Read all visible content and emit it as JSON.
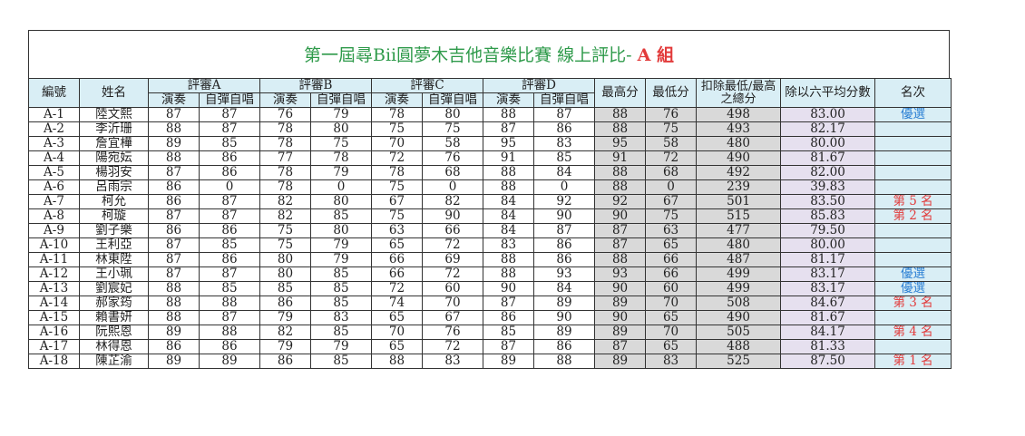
{
  "title": {
    "main": "第一屆尋Bii圓夢木吉他音樂比賽 線上評比-",
    "group": "A 組"
  },
  "headers": {
    "id": "編號",
    "name": "姓名",
    "judges": [
      "評審A",
      "評審B",
      "評審C",
      "評審D"
    ],
    "perform": "演奏",
    "sing": "自彈自唱",
    "max": "最高分",
    "min": "最低分",
    "total": "扣除最低/最高之總分",
    "average": "除以六平均分數",
    "rank": "名次"
  },
  "colors": {
    "title": "#2e9a4a",
    "group": "#e23b3b",
    "rank_selected": "#2a7fd4",
    "rank_place": "#e23b3b"
  },
  "rows": [
    {
      "id": "A-1",
      "name": "陸文熙",
      "s": [
        "87",
        "87",
        "76",
        "79",
        "78",
        "80",
        "88",
        "87"
      ],
      "max": "88",
      "min": "76",
      "total": "498",
      "avg": "83.00",
      "rank": "優選",
      "rank_type": "blue"
    },
    {
      "id": "A-2",
      "name": "李沂珊",
      "s": [
        "88",
        "87",
        "78",
        "80",
        "75",
        "75",
        "87",
        "86"
      ],
      "max": "88",
      "min": "75",
      "total": "493",
      "avg": "82.17",
      "rank": "",
      "rank_type": ""
    },
    {
      "id": "A-3",
      "name": "詹宜樺",
      "s": [
        "89",
        "85",
        "78",
        "75",
        "70",
        "58",
        "95",
        "83"
      ],
      "max": "95",
      "min": "58",
      "total": "480",
      "avg": "80.00",
      "rank": "",
      "rank_type": ""
    },
    {
      "id": "A-4",
      "name": "陽宛妘",
      "s": [
        "88",
        "86",
        "77",
        "78",
        "72",
        "76",
        "91",
        "85"
      ],
      "max": "91",
      "min": "72",
      "total": "490",
      "avg": "81.67",
      "rank": "",
      "rank_type": ""
    },
    {
      "id": "A-5",
      "name": "楊羽安",
      "s": [
        "87",
        "86",
        "78",
        "79",
        "78",
        "68",
        "88",
        "84"
      ],
      "max": "88",
      "min": "68",
      "total": "492",
      "avg": "82.00",
      "rank": "",
      "rank_type": ""
    },
    {
      "id": "A-6",
      "name": "呂雨宗",
      "s": [
        "86",
        "0",
        "78",
        "0",
        "75",
        "0",
        "88",
        "0"
      ],
      "max": "88",
      "min": "0",
      "total": "239",
      "avg": "39.83",
      "rank": "",
      "rank_type": ""
    },
    {
      "id": "A-7",
      "name": "柯允",
      "s": [
        "86",
        "87",
        "82",
        "80",
        "67",
        "82",
        "84",
        "92"
      ],
      "max": "92",
      "min": "67",
      "total": "501",
      "avg": "83.50",
      "rank": "第 5 名",
      "rank_type": "red"
    },
    {
      "id": "A-8",
      "name": "柯璇",
      "s": [
        "87",
        "87",
        "82",
        "85",
        "75",
        "90",
        "84",
        "90"
      ],
      "max": "90",
      "min": "75",
      "total": "515",
      "avg": "85.83",
      "rank": "第 2 名",
      "rank_type": "red"
    },
    {
      "id": "A-9",
      "name": "劉子樂",
      "s": [
        "86",
        "86",
        "75",
        "80",
        "63",
        "66",
        "84",
        "87"
      ],
      "max": "87",
      "min": "63",
      "total": "477",
      "avg": "79.50",
      "rank": "",
      "rank_type": ""
    },
    {
      "id": "A-10",
      "name": "王利亞",
      "s": [
        "87",
        "85",
        "75",
        "79",
        "65",
        "72",
        "83",
        "86"
      ],
      "max": "87",
      "min": "65",
      "total": "480",
      "avg": "80.00",
      "rank": "",
      "rank_type": ""
    },
    {
      "id": "A-11",
      "name": "林東陞",
      "s": [
        "87",
        "86",
        "80",
        "79",
        "66",
        "69",
        "88",
        "86"
      ],
      "max": "88",
      "min": "66",
      "total": "487",
      "avg": "81.17",
      "rank": "",
      "rank_type": ""
    },
    {
      "id": "A-12",
      "name": "王小珮",
      "s": [
        "87",
        "87",
        "80",
        "85",
        "66",
        "72",
        "88",
        "93"
      ],
      "max": "93",
      "min": "66",
      "total": "499",
      "avg": "83.17",
      "rank": "優選",
      "rank_type": "blue"
    },
    {
      "id": "A-13",
      "name": "劉宸妃",
      "s": [
        "88",
        "85",
        "85",
        "85",
        "72",
        "60",
        "90",
        "84"
      ],
      "max": "90",
      "min": "60",
      "total": "499",
      "avg": "83.17",
      "rank": "優選",
      "rank_type": "blue"
    },
    {
      "id": "A-14",
      "name": "郝家筠",
      "s": [
        "88",
        "88",
        "86",
        "85",
        "74",
        "70",
        "87",
        "89"
      ],
      "max": "89",
      "min": "70",
      "total": "508",
      "avg": "84.67",
      "rank": "第 3 名",
      "rank_type": "red"
    },
    {
      "id": "A-15",
      "name": "賴書妍",
      "s": [
        "88",
        "87",
        "79",
        "83",
        "65",
        "67",
        "86",
        "90"
      ],
      "max": "90",
      "min": "65",
      "total": "490",
      "avg": "81.67",
      "rank": "",
      "rank_type": ""
    },
    {
      "id": "A-16",
      "name": "阮熙恩",
      "s": [
        "89",
        "88",
        "82",
        "85",
        "70",
        "76",
        "85",
        "89"
      ],
      "max": "89",
      "min": "70",
      "total": "505",
      "avg": "84.17",
      "rank": "第 4 名",
      "rank_type": "red"
    },
    {
      "id": "A-17",
      "name": "林得恩",
      "s": [
        "86",
        "86",
        "79",
        "79",
        "65",
        "72",
        "87",
        "86"
      ],
      "max": "87",
      "min": "65",
      "total": "488",
      "avg": "81.33",
      "rank": "",
      "rank_type": ""
    },
    {
      "id": "A-18",
      "name": "陳芷渝",
      "s": [
        "89",
        "89",
        "86",
        "85",
        "88",
        "83",
        "89",
        "88"
      ],
      "max": "89",
      "min": "83",
      "total": "525",
      "avg": "87.50",
      "rank": "第 1 名",
      "rank_type": "red"
    }
  ]
}
